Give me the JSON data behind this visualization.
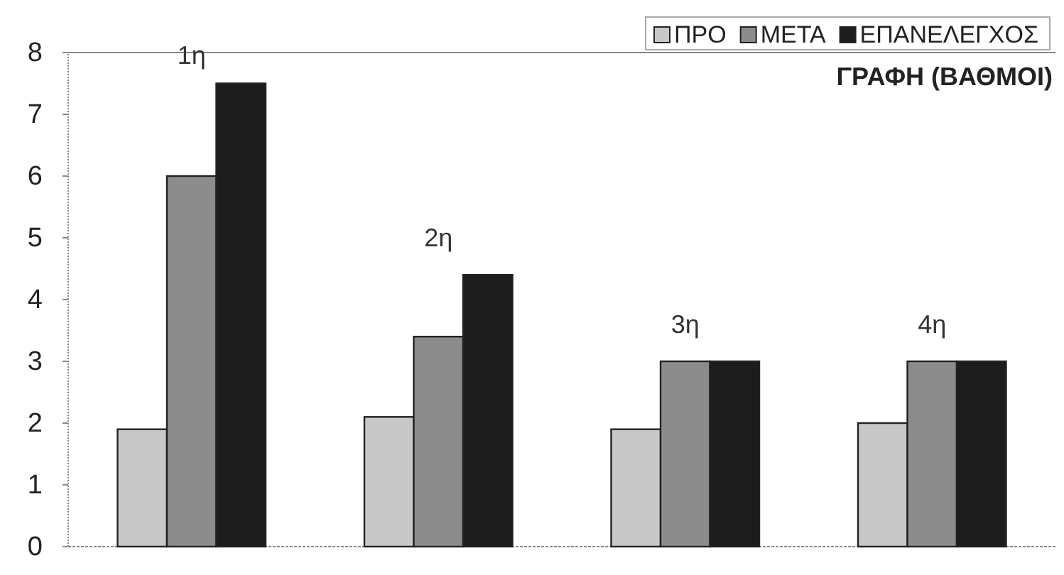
{
  "chart_data": {
    "type": "bar",
    "title": "ΓΡΑΦΗ (ΒΑΘΜΟΙ)",
    "categories": [
      "1η",
      "2η",
      "3η",
      "4η"
    ],
    "series": [
      {
        "name": "ΠΡΟ",
        "color": "#c8c8c8",
        "values": [
          1.9,
          2.1,
          1.9,
          2
        ]
      },
      {
        "name": "ΜΕΤΑ",
        "color": "#8c8c8c",
        "values": [
          6,
          3.4,
          3,
          3
        ]
      },
      {
        "name": "ΕΠΑΝΕΛΕΓΧΟΣ",
        "color": "#1c1c1c",
        "values": [
          7.5,
          4.4,
          3,
          3
        ]
      }
    ],
    "ylim": [
      0,
      8
    ],
    "yticks": [
      0,
      1,
      2,
      3,
      4,
      5,
      6,
      7,
      8
    ],
    "legend": "top right"
  }
}
